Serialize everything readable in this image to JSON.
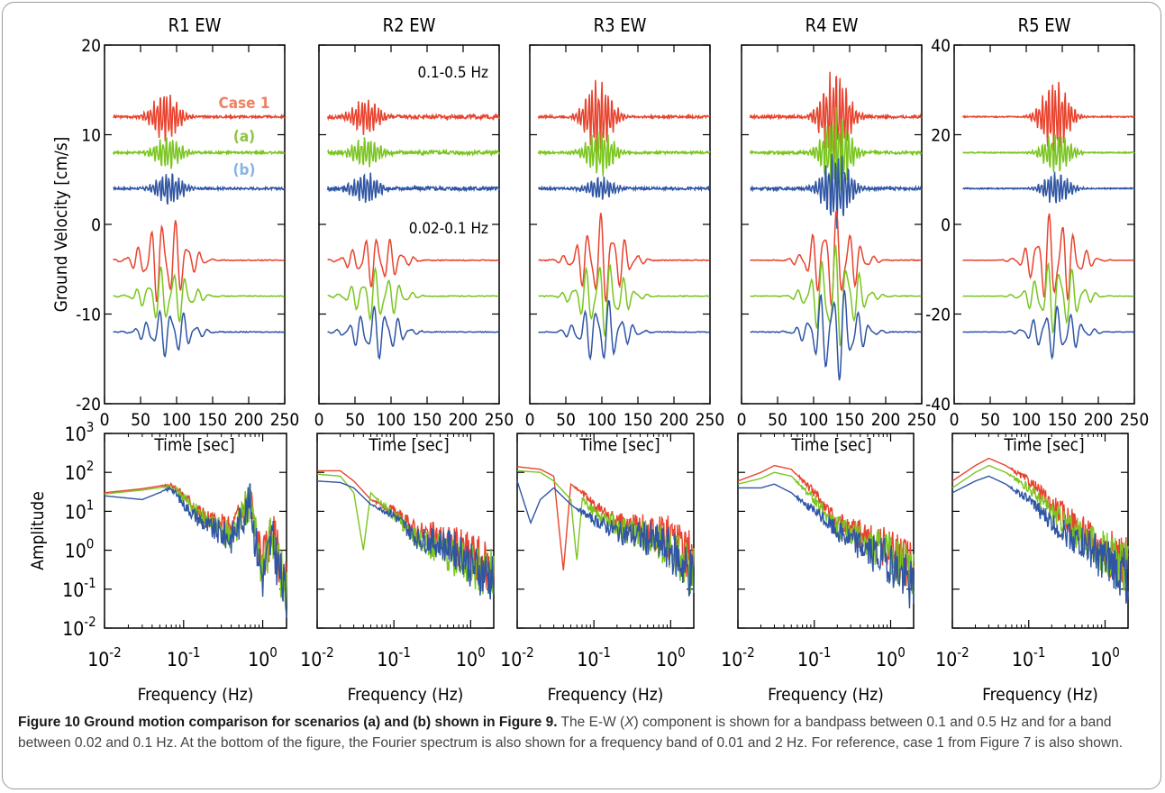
{
  "caption": {
    "title": "Figure 10 Ground motion comparison for scenarios (a) and (b) shown in Figure 9.",
    "body_pre": " The E-W (",
    "body_italic": "X",
    "body_post": ") component is shown for a bandpass between 0.1 and 0.5 Hz and for a band between 0.02 and 0.1 Hz. At the bottom of the figure, the Fourier spectrum is also shown for a frequency band of 0.01 and 2 Hz. For reference, case 1 from Figure 7 is also shown."
  },
  "colors": {
    "case1": "#e8432e",
    "a": "#7ac520",
    "b": "#2f55a4",
    "case1_label": "#f08060",
    "a_label": "#8cc63f",
    "b_label": "#87b4e0"
  },
  "chart_data": [
    {
      "type": "line",
      "row": "velocity",
      "title": "R1  EW",
      "xlabel": "Time [sec]",
      "ylabel": "Ground Velocity [cm/s]",
      "xlim": [
        0,
        250
      ],
      "ylim": [
        -20,
        20
      ],
      "xticks": [
        "0",
        "50",
        "100",
        "150",
        "200",
        "250"
      ],
      "yticks": [
        "-20",
        "-10",
        "0",
        "10",
        "20"
      ],
      "legend": [
        "Case 1",
        "(a)",
        "(b)"
      ],
      "band_labels": [],
      "series": [
        {
          "name": "Case 1",
          "band": "0.1-0.5 Hz",
          "offset": 12,
          "center": 85,
          "amp": 3,
          "scale": 0.7
        },
        {
          "name": "(a)",
          "band": "0.1-0.5 Hz",
          "offset": 8,
          "center": 88,
          "amp": 2,
          "scale": 0.7
        },
        {
          "name": "(b)",
          "band": "0.1-0.5 Hz",
          "offset": 4,
          "center": 90,
          "amp": 2,
          "scale": 0.7
        },
        {
          "name": "Case 1",
          "band": "0.02-0.1 Hz",
          "offset": -4,
          "center": 85,
          "amp": 4.5,
          "scale": 0.85
        },
        {
          "name": "(a)",
          "band": "0.02-0.1 Hz",
          "offset": -8,
          "center": 88,
          "amp": 3,
          "scale": 0.85
        },
        {
          "name": "(b)",
          "band": "0.02-0.1 Hz",
          "offset": -12,
          "center": 90,
          "amp": 2.5,
          "scale": 0.85
        }
      ]
    },
    {
      "type": "line",
      "row": "velocity",
      "title": "R2  EW",
      "xlabel": "Time [sec]",
      "xlim": [
        0,
        250
      ],
      "ylim": [
        -20,
        20
      ],
      "xticks": [
        "0",
        "50",
        "100",
        "150",
        "200",
        "250"
      ],
      "yticks": [],
      "band_labels": [
        "0.1-0.5 Hz",
        "0.02-0.1 Hz"
      ],
      "series": [
        {
          "name": "Case 1",
          "band": "0.1-0.5 Hz",
          "offset": 12,
          "center": 65,
          "amp": 1.2,
          "scale": 1.3
        },
        {
          "name": "(a)",
          "band": "0.1-0.5 Hz",
          "offset": 8,
          "center": 65,
          "amp": 1.0,
          "scale": 1.3
        },
        {
          "name": "(b)",
          "band": "0.1-0.5 Hz",
          "offset": 4,
          "center": 65,
          "amp": 1.0,
          "scale": 1.3
        },
        {
          "name": "Case 1",
          "band": "0.02-0.1 Hz",
          "offset": -4,
          "center": 80,
          "amp": 1.5,
          "scale": 1.5
        },
        {
          "name": "(a)",
          "band": "0.02-0.1 Hz",
          "offset": -8,
          "center": 80,
          "amp": 1.5,
          "scale": 1.5
        },
        {
          "name": "(b)",
          "band": "0.02-0.1 Hz",
          "offset": -12,
          "center": 80,
          "amp": 1.5,
          "scale": 1.5
        }
      ]
    },
    {
      "type": "line",
      "row": "velocity",
      "title": "R3  EW",
      "xlabel": "Time [sec]",
      "xlim": [
        0,
        250
      ],
      "ylim": [
        -20,
        20
      ],
      "xticks": [
        "0",
        "50",
        "100",
        "150",
        "200",
        "250"
      ],
      "yticks": [],
      "band_labels": [],
      "series": [
        {
          "name": "Case 1",
          "band": "0.1-0.5 Hz",
          "offset": 12,
          "center": 95,
          "amp": 4.0,
          "scale": 0.8
        },
        {
          "name": "(a)",
          "band": "0.1-0.5 Hz",
          "offset": 8,
          "center": 98,
          "amp": 2.5,
          "scale": 0.8
        },
        {
          "name": "(b)",
          "band": "0.1-0.5 Hz",
          "offset": 4,
          "center": 98,
          "amp": 1.2,
          "scale": 0.8
        },
        {
          "name": "Case 1",
          "band": "0.02-0.1 Hz",
          "offset": -4,
          "center": 100,
          "amp": 3.5,
          "scale": 1.1
        },
        {
          "name": "(a)",
          "band": "0.02-0.1 Hz",
          "offset": -8,
          "center": 100,
          "amp": 3.0,
          "scale": 1.1
        },
        {
          "name": "(b)",
          "band": "0.02-0.1 Hz",
          "offset": -12,
          "center": 100,
          "amp": 2.5,
          "scale": 1.1
        }
      ]
    },
    {
      "type": "line",
      "row": "velocity",
      "title": "R4  EW",
      "xlabel": "Time [sec]",
      "xlim": [
        0,
        250
      ],
      "ylim": [
        -20,
        20
      ],
      "xticks": [
        "0",
        "50",
        "100",
        "150",
        "200",
        "250"
      ],
      "yticks": [],
      "band_labels": [],
      "series": [
        {
          "name": "Case 1",
          "band": "0.1-0.5 Hz",
          "offset": 12,
          "center": 130,
          "amp": 4.5,
          "scale": 0.9
        },
        {
          "name": "(a)",
          "band": "0.1-0.5 Hz",
          "offset": 8,
          "center": 132,
          "amp": 4.0,
          "scale": 0.9
        },
        {
          "name": "(b)",
          "band": "0.1-0.5 Hz",
          "offset": 4,
          "center": 132,
          "amp": 3.5,
          "scale": 0.9
        },
        {
          "name": "Case 1",
          "band": "0.02-0.1 Hz",
          "offset": -4,
          "center": 128,
          "amp": 3.8,
          "scale": 1.1
        },
        {
          "name": "(a)",
          "band": "0.02-0.1 Hz",
          "offset": -8,
          "center": 130,
          "amp": 4.0,
          "scale": 1.1
        },
        {
          "name": "(b)",
          "band": "0.02-0.1 Hz",
          "offset": -12,
          "center": 130,
          "amp": 3.8,
          "scale": 1.1
        }
      ]
    },
    {
      "type": "line",
      "row": "velocity",
      "title": "R5  EW",
      "xlabel": "Time [sec]",
      "xlim": [
        0,
        250
      ],
      "ylim": [
        -40,
        40
      ],
      "xticks": [
        "0",
        "50",
        "100",
        "150",
        "200",
        "250"
      ],
      "yticks": [
        "-40",
        "-20",
        "0",
        "20",
        "40"
      ],
      "yticks_side": "left",
      "band_labels": [],
      "series": [
        {
          "name": "Case 1",
          "band": "0.1-0.5 Hz",
          "offset": 24,
          "center": 140,
          "amp": 9,
          "scale": 0.7
        },
        {
          "name": "(a)",
          "band": "0.1-0.5 Hz",
          "offset": 16,
          "center": 142,
          "amp": 5,
          "scale": 0.7
        },
        {
          "name": "(b)",
          "band": "0.1-0.5 Hz",
          "offset": 8,
          "center": 142,
          "amp": 4,
          "scale": 0.7
        },
        {
          "name": "Case 1",
          "band": "0.02-0.1 Hz",
          "offset": -8,
          "center": 140,
          "amp": 9,
          "scale": 0.9
        },
        {
          "name": "(a)",
          "band": "0.02-0.1 Hz",
          "offset": -16,
          "center": 142,
          "amp": 7,
          "scale": 0.9
        },
        {
          "name": "(b)",
          "band": "0.02-0.1 Hz",
          "offset": -24,
          "center": 142,
          "amp": 5,
          "scale": 0.9
        }
      ]
    },
    {
      "type": "line",
      "row": "spectrum",
      "station": "R1",
      "xlabel": "Frequency (Hz)",
      "ylabel": "Amplitude",
      "xscale": "log",
      "yscale": "log",
      "xlim": [
        0.01,
        2
      ],
      "ylim": [
        0.01,
        1000
      ],
      "xticks": [
        "10^-2",
        "10^-1",
        "10^0"
      ],
      "yticks": [
        "10^-2",
        "10^-1",
        "10^0",
        "10^1",
        "10^2",
        "10^3"
      ],
      "series": [
        {
          "name": "Case 1",
          "f": [
            0.01,
            0.03,
            0.07,
            0.1,
            0.2,
            0.4,
            0.7,
            0.8,
            1.0,
            1.3,
            2.0
          ],
          "amp": [
            30,
            38,
            50,
            25,
            6,
            3,
            25,
            3,
            0.5,
            3,
            0.1
          ]
        },
        {
          "name": "(a)",
          "f": [
            0.01,
            0.03,
            0.07,
            0.1,
            0.2,
            0.4,
            0.7,
            0.8,
            1.0,
            1.3,
            2.0
          ],
          "amp": [
            28,
            35,
            45,
            22,
            5,
            2.5,
            20,
            2.5,
            0.3,
            2.5,
            0.08
          ]
        },
        {
          "name": "(b)",
          "f": [
            0.01,
            0.03,
            0.07,
            0.1,
            0.2,
            0.4,
            0.7,
            0.8,
            1.0,
            1.3,
            2.0
          ],
          "amp": [
            25,
            20,
            40,
            15,
            4,
            2,
            18,
            2,
            0.2,
            2,
            0.05
          ]
        }
      ]
    },
    {
      "type": "line",
      "row": "spectrum",
      "station": "R2",
      "xlabel": "Frequency (Hz)",
      "xscale": "log",
      "yscale": "log",
      "xlim": [
        0.01,
        2
      ],
      "ylim": [
        0.01,
        1000
      ],
      "xticks": [
        "10^-2",
        "10^-1",
        "10^0"
      ],
      "yticks": [],
      "series": [
        {
          "name": "Case 1",
          "f": [
            0.01,
            0.02,
            0.03,
            0.05,
            0.1,
            0.2,
            0.4,
            0.8,
            1.0,
            2.0
          ],
          "amp": [
            110,
            110,
            60,
            20,
            10,
            3,
            2,
            1,
            0.8,
            0.3
          ]
        },
        {
          "name": "(a)",
          "f": [
            0.01,
            0.02,
            0.03,
            0.04,
            0.05,
            0.1,
            0.2,
            0.4,
            0.8,
            2.0
          ],
          "amp": [
            90,
            80,
            30,
            1,
            30,
            8,
            2,
            1,
            0.5,
            0.2
          ]
        },
        {
          "name": "(b)",
          "f": [
            0.01,
            0.02,
            0.03,
            0.05,
            0.1,
            0.2,
            0.4,
            0.8,
            1.0,
            2.0
          ],
          "amp": [
            60,
            55,
            40,
            15,
            8,
            2,
            1.5,
            0.8,
            0.4,
            0.2
          ]
        }
      ]
    },
    {
      "type": "line",
      "row": "spectrum",
      "station": "R3",
      "xlabel": "Frequency (Hz)",
      "xscale": "log",
      "yscale": "log",
      "xlim": [
        0.01,
        2
      ],
      "ylim": [
        0.01,
        1000
      ],
      "xticks": [
        "10^-2",
        "10^-1",
        "10^0"
      ],
      "yticks": [],
      "series": [
        {
          "name": "Case 1",
          "f": [
            0.01,
            0.02,
            0.03,
            0.04,
            0.05,
            0.07,
            0.1,
            0.2,
            0.5,
            1.0,
            2.0
          ],
          "amp": [
            140,
            120,
            80,
            0.3,
            50,
            30,
            15,
            5,
            3,
            2,
            0.5
          ]
        },
        {
          "name": "(a)",
          "f": [
            0.01,
            0.02,
            0.03,
            0.05,
            0.06,
            0.07,
            0.1,
            0.2,
            0.5,
            1.0,
            2.0
          ],
          "amp": [
            110,
            100,
            60,
            20,
            0.5,
            20,
            10,
            4,
            2,
            1,
            0.3
          ]
        },
        {
          "name": "(b)",
          "f": [
            0.01,
            0.015,
            0.02,
            0.03,
            0.05,
            0.1,
            0.2,
            0.5,
            1.0,
            2.0
          ],
          "amp": [
            60,
            5,
            20,
            40,
            15,
            6,
            3,
            2,
            1,
            0.2
          ]
        }
      ]
    },
    {
      "type": "line",
      "row": "spectrum",
      "station": "R4",
      "xlabel": "Frequency (Hz)",
      "xscale": "log",
      "yscale": "log",
      "xlim": [
        0.01,
        2
      ],
      "ylim": [
        0.01,
        1000
      ],
      "xticks": [
        "10^-2",
        "10^-1",
        "10^0"
      ],
      "yticks": [],
      "series": [
        {
          "name": "Case 1",
          "f": [
            0.01,
            0.02,
            0.03,
            0.05,
            0.1,
            0.2,
            0.5,
            1.0,
            2.0
          ],
          "amp": [
            60,
            100,
            150,
            120,
            30,
            5,
            2,
            1,
            0.3
          ]
        },
        {
          "name": "(a)",
          "f": [
            0.01,
            0.02,
            0.03,
            0.05,
            0.1,
            0.2,
            0.5,
            1.0,
            2.0
          ],
          "amp": [
            50,
            70,
            100,
            80,
            20,
            4,
            1.5,
            0.8,
            0.2
          ]
        },
        {
          "name": "(b)",
          "f": [
            0.01,
            0.02,
            0.03,
            0.05,
            0.1,
            0.2,
            0.5,
            1.0,
            2.0
          ],
          "amp": [
            40,
            40,
            50,
            30,
            10,
            3,
            1,
            0.5,
            0.1
          ]
        }
      ]
    },
    {
      "type": "line",
      "row": "spectrum",
      "station": "R5",
      "xlabel": "Frequency (Hz)",
      "xscale": "log",
      "yscale": "log",
      "xlim": [
        0.01,
        2
      ],
      "ylim": [
        0.01,
        1000
      ],
      "xticks": [
        "10^-2",
        "10^-1",
        "10^0"
      ],
      "yticks": [],
      "series": [
        {
          "name": "Case 1",
          "f": [
            0.01,
            0.02,
            0.03,
            0.05,
            0.1,
            0.2,
            0.5,
            1.0,
            2.0
          ],
          "amp": [
            60,
            150,
            230,
            150,
            60,
            15,
            3,
            1,
            0.5
          ]
        },
        {
          "name": "(a)",
          "f": [
            0.01,
            0.02,
            0.03,
            0.05,
            0.1,
            0.2,
            0.5,
            1.0,
            2.0
          ],
          "amp": [
            40,
            100,
            150,
            100,
            40,
            10,
            2,
            0.8,
            0.3
          ]
        },
        {
          "name": "(b)",
          "f": [
            0.01,
            0.02,
            0.03,
            0.05,
            0.1,
            0.2,
            0.5,
            1.0,
            2.0
          ],
          "amp": [
            30,
            60,
            80,
            50,
            20,
            5,
            1.5,
            0.5,
            0.2
          ]
        }
      ]
    }
  ]
}
